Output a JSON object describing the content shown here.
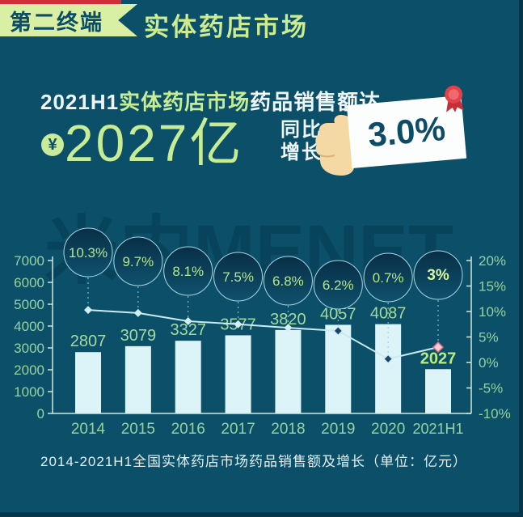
{
  "header": {
    "badge": "第二终端",
    "title": "实体药店市场"
  },
  "headline": {
    "prefix": "2021H1",
    "highlight": "实体药店市场",
    "suffix": "药品销售额达",
    "currency_symbol": "¥",
    "amount": "2027亿",
    "growth_label_line1": "同比",
    "growth_label_line2": "增长",
    "growth_value": "3.0%"
  },
  "watermark": "米内MENET",
  "caption": "2014-2021H1全国实体药店市场药品销售额及增长（单位：亿元）",
  "chart_data": {
    "type": "bar",
    "title": "2014-2021H1全国实体药店市场药品销售额及增长（单位：亿元）",
    "categories": [
      "2014",
      "2015",
      "2016",
      "2017",
      "2018",
      "2019",
      "2020",
      "2021H1"
    ],
    "series": [
      {
        "name": "药品销售额(亿元)",
        "type": "bar",
        "values": [
          2807,
          3079,
          3327,
          3577,
          3820,
          4057,
          4087,
          2027
        ]
      },
      {
        "name": "同比增长(%)",
        "type": "line",
        "values": [
          10.3,
          9.7,
          8.1,
          7.5,
          6.8,
          6.2,
          0.7,
          3.0
        ]
      }
    ],
    "left_axis": {
      "min": 0,
      "max": 7000,
      "step": 1000
    },
    "right_axis": {
      "min": -10,
      "max": 20,
      "step": 5,
      "suffix": "%"
    },
    "grid": false,
    "legend": "none"
  },
  "colors": {
    "background": "#0b5068",
    "accent_red": "#cf3038",
    "banner_green": "#d9efa4",
    "badge_text": "#0b4d66",
    "title_green": "#cdeb8f",
    "highlight_green": "#c6ec96",
    "bar_fill": "#dcf4f8",
    "bar_label": "#a4daa0",
    "bar_label_highlight": "#b9ec7d",
    "axis": "#cfe9dc",
    "axis_label": "#97d2a0",
    "line": "#c8eaf2",
    "dash": "#9cc9d8",
    "marker_light": "#d2eff6",
    "marker_dark": "#1e4668",
    "marker_pink": "#f7cdd6",
    "marker_pink_edge": "#e66a85",
    "bubble_fill_top": "#082f47",
    "bubble_fill_bottom": "#0f516c",
    "bubble_stroke": "#a7d6e2",
    "bubble_text": "#b5e58c",
    "bubble_text_highlight": "#d9f79f",
    "card_text": "#0c4c66"
  },
  "icons": {
    "coin": "yuan-coin-icon",
    "hand": "hand-icon",
    "ribbon": "award-ribbon-icon"
  }
}
